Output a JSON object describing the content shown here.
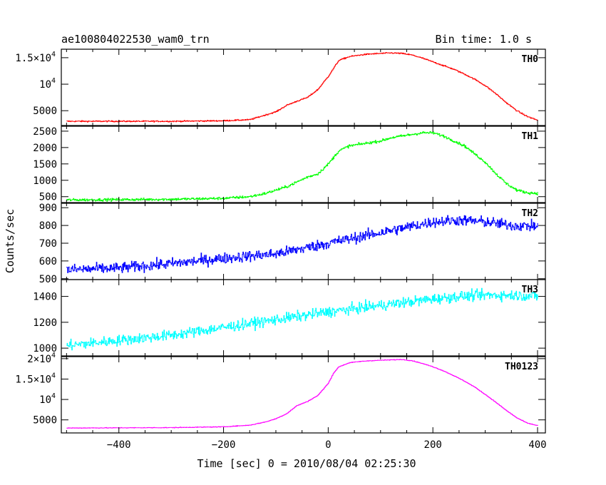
{
  "header": {
    "title": "ae100804022530_wam0_trn",
    "bin_time": "Bin time: 1.0 s"
  },
  "chart_data": {
    "type": "line",
    "xlabel": "Time [sec] 0 = 2010/08/04 02:25:30",
    "ylabel": "Counts/sec",
    "xlim": [
      -510,
      415
    ],
    "x_ticks": [
      -400,
      -200,
      0,
      200,
      400
    ],
    "panels": [
      {
        "name": "TH0",
        "label": "TH0",
        "color": "#ff0000",
        "noise": 120,
        "ylim": [
          2200,
          16600
        ],
        "y_ticks": [
          {
            "v": 15000,
            "t": "1.5×10",
            "sup": "4"
          },
          {
            "v": 10000,
            "t": "10",
            "sup": "4"
          },
          {
            "v": 5000,
            "t": "5000",
            "sup": ""
          }
        ],
        "x": [
          -500,
          -300,
          -200,
          -150,
          -120,
          -100,
          -80,
          -60,
          -40,
          -20,
          0,
          10,
          20,
          40,
          60,
          80,
          100,
          120,
          140,
          160,
          180,
          200,
          220,
          240,
          260,
          280,
          300,
          320,
          340,
          360,
          380,
          400
        ],
        "y": [
          3000,
          3000,
          3100,
          3300,
          4200,
          4800,
          6000,
          6800,
          7500,
          9000,
          11500,
          13000,
          14500,
          15200,
          15500,
          15700,
          15800,
          15900,
          15800,
          15500,
          14900,
          14200,
          13500,
          12800,
          11900,
          10900,
          9700,
          8200,
          6500,
          5000,
          3900,
          3200
        ]
      },
      {
        "name": "TH1",
        "label": "TH1",
        "color": "#00ff00",
        "noise": 40,
        "ylim": [
          320,
          2650
        ],
        "y_ticks": [
          {
            "v": 2500,
            "t": "2500",
            "sup": ""
          },
          {
            "v": 2000,
            "t": "2000",
            "sup": ""
          },
          {
            "v": 1500,
            "t": "1500",
            "sup": ""
          },
          {
            "v": 1000,
            "t": "1000",
            "sup": ""
          },
          {
            "v": 500,
            "t": "500",
            "sup": ""
          }
        ],
        "x": [
          -500,
          -300,
          -200,
          -150,
          -120,
          -100,
          -80,
          -60,
          -40,
          -20,
          0,
          10,
          20,
          40,
          60,
          80,
          100,
          120,
          140,
          160,
          180,
          200,
          220,
          240,
          260,
          280,
          300,
          320,
          340,
          360,
          380,
          400
        ],
        "y": [
          400,
          420,
          450,
          500,
          600,
          700,
          800,
          950,
          1100,
          1200,
          1500,
          1700,
          1900,
          2050,
          2100,
          2150,
          2200,
          2300,
          2350,
          2400,
          2450,
          2450,
          2350,
          2200,
          2050,
          1800,
          1550,
          1200,
          900,
          700,
          620,
          600
        ]
      },
      {
        "name": "TH2",
        "label": "TH2",
        "color": "#0000ff",
        "noise": 30,
        "ylim": [
          495,
          925
        ],
        "y_ticks": [
          {
            "v": 900,
            "t": "900",
            "sup": ""
          },
          {
            "v": 800,
            "t": "800",
            "sup": ""
          },
          {
            "v": 700,
            "t": "700",
            "sup": ""
          },
          {
            "v": 600,
            "t": "600",
            "sup": ""
          },
          {
            "v": 500,
            "t": "500",
            "sup": ""
          }
        ],
        "x": [
          -500,
          -400,
          -300,
          -200,
          -100,
          0,
          100,
          150,
          200,
          250,
          300,
          350,
          400
        ],
        "y": [
          550,
          560,
          585,
          615,
          640,
          700,
          760,
          790,
          820,
          830,
          820,
          800,
          795
        ]
      },
      {
        "name": "TH3",
        "label": "TH3",
        "color": "#00ffff",
        "noise": 40,
        "ylim": [
          940,
          1530
        ],
        "y_ticks": [
          {
            "v": 1400,
            "t": "1400",
            "sup": ""
          },
          {
            "v": 1200,
            "t": "1200",
            "sup": ""
          },
          {
            "v": 1000,
            "t": "1000",
            "sup": ""
          }
        ],
        "x": [
          -500,
          -400,
          -300,
          -200,
          -100,
          0,
          100,
          200,
          250,
          300,
          350,
          400
        ],
        "y": [
          1020,
          1060,
          1100,
          1160,
          1220,
          1280,
          1330,
          1380,
          1400,
          1410,
          1410,
          1400
        ]
      },
      {
        "name": "TH0123",
        "label": "TH0123",
        "color": "#ff00ff",
        "noise": 80,
        "ylim": [
          1800,
          20500
        ],
        "y_ticks": [
          {
            "v": 20000,
            "t": "2×10",
            "sup": "4"
          },
          {
            "v": 15000,
            "t": "1.5×10",
            "sup": "4"
          },
          {
            "v": 10000,
            "t": "10",
            "sup": "4"
          },
          {
            "v": 5000,
            "t": "5000",
            "sup": ""
          }
        ],
        "x": [
          -500,
          -300,
          -200,
          -150,
          -120,
          -100,
          -80,
          -60,
          -40,
          -20,
          0,
          10,
          20,
          40,
          60,
          80,
          100,
          120,
          140,
          160,
          180,
          200,
          220,
          240,
          260,
          280,
          300,
          320,
          340,
          360,
          380,
          400
        ],
        "y": [
          3000,
          3100,
          3300,
          3700,
          4500,
          5300,
          6500,
          8500,
          9500,
          11000,
          14000,
          16500,
          18000,
          19000,
          19300,
          19500,
          19600,
          19700,
          19800,
          19500,
          18800,
          18000,
          17000,
          15800,
          14500,
          13000,
          11200,
          9300,
          7300,
          5500,
          4200,
          3600
        ]
      }
    ]
  }
}
